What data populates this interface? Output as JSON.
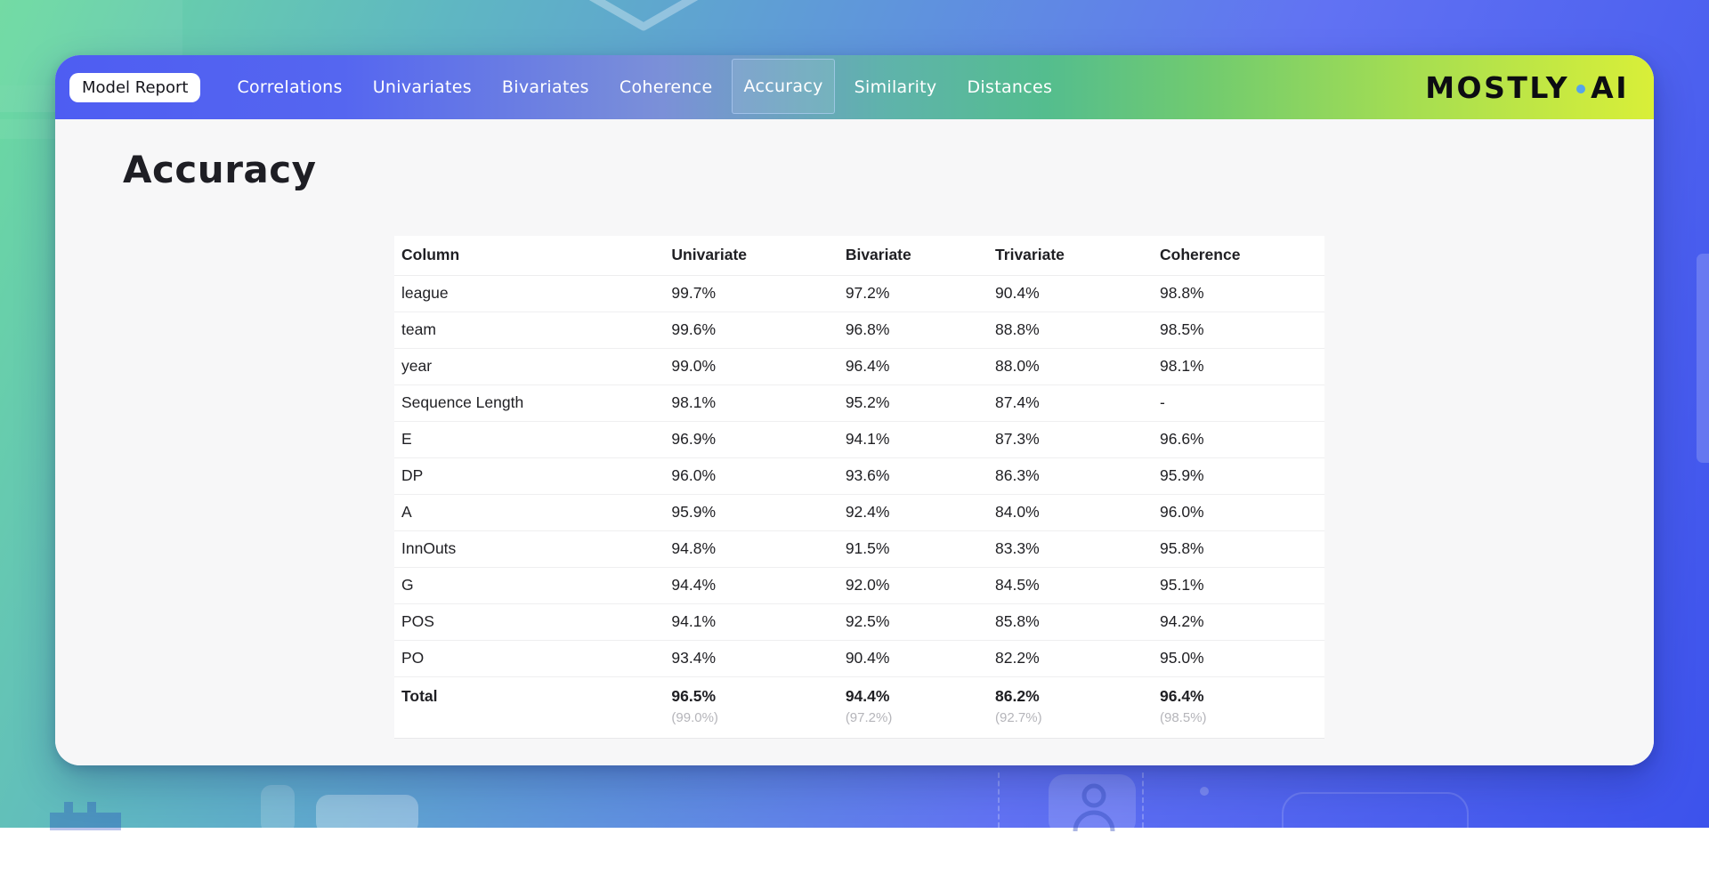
{
  "nav": {
    "badge_label": "Model Report",
    "items": [
      {
        "label": "Correlations",
        "active": false
      },
      {
        "label": "Univariates",
        "active": false
      },
      {
        "label": "Bivariates",
        "active": false
      },
      {
        "label": "Coherence",
        "active": false
      },
      {
        "label": "Accuracy",
        "active": true
      },
      {
        "label": "Similarity",
        "active": false
      },
      {
        "label": "Distances",
        "active": false
      }
    ],
    "logo": {
      "word1": "MOSTLY",
      "word2": "AI"
    }
  },
  "page": {
    "heading": "Accuracy"
  },
  "table": {
    "headers": [
      "Column",
      "Univariate",
      "Bivariate",
      "Trivariate",
      "Coherence"
    ],
    "rows": [
      [
        "league",
        "99.7%",
        "97.2%",
        "90.4%",
        "98.8%"
      ],
      [
        "team",
        "99.6%",
        "96.8%",
        "88.8%",
        "98.5%"
      ],
      [
        "year",
        "99.0%",
        "96.4%",
        "88.0%",
        "98.1%"
      ],
      [
        "Sequence Length",
        "98.1%",
        "95.2%",
        "87.4%",
        "-"
      ],
      [
        "E",
        "96.9%",
        "94.1%",
        "87.3%",
        "96.6%"
      ],
      [
        "DP",
        "96.0%",
        "93.6%",
        "86.3%",
        "95.9%"
      ],
      [
        "A",
        "95.9%",
        "92.4%",
        "84.0%",
        "96.0%"
      ],
      [
        "InnOuts",
        "94.8%",
        "91.5%",
        "83.3%",
        "95.8%"
      ],
      [
        "G",
        "94.4%",
        "92.0%",
        "84.5%",
        "95.1%"
      ],
      [
        "POS",
        "94.1%",
        "92.5%",
        "85.8%",
        "94.2%"
      ],
      [
        "PO",
        "93.4%",
        "90.4%",
        "82.2%",
        "95.0%"
      ]
    ],
    "total": {
      "label": "Total",
      "values": [
        "96.5%",
        "94.4%",
        "86.2%",
        "96.4%"
      ],
      "sub_values": [
        "(99.0%)",
        "(97.2%)",
        "(92.7%)",
        "(98.5%)"
      ]
    }
  },
  "colors": {
    "nav_gradient_start": "#4e5df2",
    "nav_gradient_mid": "#54bd8e",
    "nav_gradient_end": "#d9ef38",
    "logo_dot": "#55a4ea",
    "background_top_left": "#6cdaa0",
    "background_bottom_right": "#3c52ec",
    "active_tab_border": "#bed7ff",
    "table_text": "#1f1f23",
    "total_sub_text": "#b5b5ba"
  }
}
